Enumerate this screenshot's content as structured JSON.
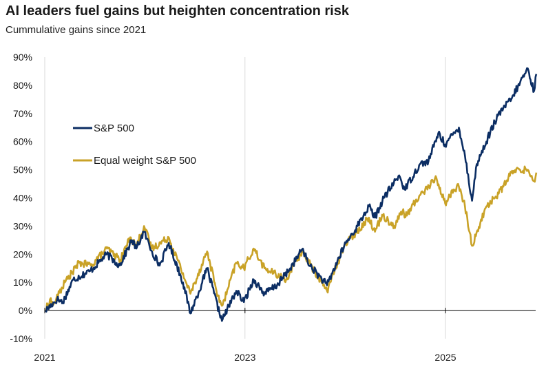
{
  "chart_data": {
    "type": "line",
    "title": "AI leaders fuel gains but heighten concentration risk",
    "subtitle": "Cummulative gains since 2021",
    "x_ticks": [
      "2021",
      "2023",
      "2025"
    ],
    "x_range": [
      "2021-01-01",
      "2025-11-30"
    ],
    "ylim": [
      -10,
      90
    ],
    "y_ticks": [
      "-10%",
      "0%",
      "10%",
      "20%",
      "30%",
      "40%",
      "50%",
      "60%",
      "70%",
      "80%",
      "90%"
    ],
    "y_unit": "%",
    "grid": "vertical lines at year ticks",
    "legend_placement": "upper-left inside plot",
    "series": [
      {
        "name": "S&P 500",
        "color": "#0b2d63",
        "points": [
          [
            "2021-01-04",
            0
          ],
          [
            "2021-02-15",
            4
          ],
          [
            "2021-03-08",
            3
          ],
          [
            "2021-04-15",
            11
          ],
          [
            "2021-06-15",
            14
          ],
          [
            "2021-08-15",
            20
          ],
          [
            "2021-10-01",
            16
          ],
          [
            "2021-11-15",
            25
          ],
          [
            "2021-12-01",
            22
          ],
          [
            "2021-12-28",
            28
          ],
          [
            "2022-01-27",
            21
          ],
          [
            "2022-02-24",
            16
          ],
          [
            "2022-03-29",
            24
          ],
          [
            "2022-05-20",
            10
          ],
          [
            "2022-06-16",
            -1
          ],
          [
            "2022-07-29",
            10
          ],
          [
            "2022-08-16",
            15
          ],
          [
            "2022-09-30",
            -1
          ],
          [
            "2022-10-12",
            -3
          ],
          [
            "2022-11-30",
            7
          ],
          [
            "2022-12-28",
            3
          ],
          [
            "2023-02-02",
            11
          ],
          [
            "2023-03-13",
            6
          ],
          [
            "2023-04-28",
            9
          ],
          [
            "2023-06-15",
            15
          ],
          [
            "2023-07-31",
            22
          ],
          [
            "2023-08-18",
            17
          ],
          [
            "2023-10-27",
            9
          ],
          [
            "2023-12-29",
            23
          ],
          [
            "2024-02-15",
            30
          ],
          [
            "2024-03-28",
            37
          ],
          [
            "2024-04-19",
            33
          ],
          [
            "2024-05-21",
            40
          ],
          [
            "2024-07-16",
            48
          ],
          [
            "2024-08-05",
            43
          ],
          [
            "2024-09-30",
            52
          ],
          [
            "2024-10-31",
            53
          ],
          [
            "2024-12-06",
            63
          ],
          [
            "2024-12-31",
            59
          ],
          [
            "2025-02-19",
            65
          ],
          [
            "2025-03-13",
            55
          ],
          [
            "2025-04-08",
            39
          ],
          [
            "2025-04-25",
            52
          ],
          [
            "2025-05-30",
            60
          ],
          [
            "2025-06-30",
            67
          ],
          [
            "2025-07-31",
            72
          ],
          [
            "2025-08-29",
            75
          ],
          [
            "2025-09-30",
            81
          ],
          [
            "2025-10-28",
            86
          ],
          [
            "2025-11-07",
            82
          ],
          [
            "2025-11-20",
            78
          ],
          [
            "2025-11-28",
            84
          ]
        ]
      },
      {
        "name": "Equal weight S&P 500",
        "color": "#c9a227",
        "points": [
          [
            "2021-01-04",
            0
          ],
          [
            "2021-01-20",
            4
          ],
          [
            "2021-02-01",
            2
          ],
          [
            "2021-03-15",
            10
          ],
          [
            "2021-05-07",
            17
          ],
          [
            "2021-06-18",
            16
          ],
          [
            "2021-08-16",
            22
          ],
          [
            "2021-10-04",
            18
          ],
          [
            "2021-11-08",
            26
          ],
          [
            "2021-12-01",
            23
          ],
          [
            "2021-12-29",
            30
          ],
          [
            "2022-01-27",
            22
          ],
          [
            "2022-03-29",
            26
          ],
          [
            "2022-05-12",
            15
          ],
          [
            "2022-06-16",
            6
          ],
          [
            "2022-08-16",
            21
          ],
          [
            "2022-09-30",
            3
          ],
          [
            "2022-10-12",
            2
          ],
          [
            "2022-11-30",
            17
          ],
          [
            "2022-12-28",
            15
          ],
          [
            "2023-02-02",
            22
          ],
          [
            "2023-03-13",
            15
          ],
          [
            "2023-05-31",
            11
          ],
          [
            "2023-07-28",
            21
          ],
          [
            "2023-10-27",
            7
          ],
          [
            "2023-12-29",
            23
          ],
          [
            "2024-03-28",
            33
          ],
          [
            "2024-04-19",
            28
          ],
          [
            "2024-05-15",
            34
          ],
          [
            "2024-06-28",
            30
          ],
          [
            "2024-07-31",
            36
          ],
          [
            "2024-08-05",
            33
          ],
          [
            "2024-09-30",
            41
          ],
          [
            "2024-11-29",
            47
          ],
          [
            "2024-12-31",
            38
          ],
          [
            "2025-01-31",
            43
          ],
          [
            "2025-02-19",
            44
          ],
          [
            "2025-03-13",
            37
          ],
          [
            "2025-04-08",
            23
          ],
          [
            "2025-05-30",
            37
          ],
          [
            "2025-06-30",
            40
          ],
          [
            "2025-07-31",
            44
          ],
          [
            "2025-08-29",
            49
          ],
          [
            "2025-09-30",
            50
          ],
          [
            "2025-10-28",
            50
          ],
          [
            "2025-11-20",
            46
          ],
          [
            "2025-11-28",
            49
          ]
        ]
      }
    ]
  }
}
